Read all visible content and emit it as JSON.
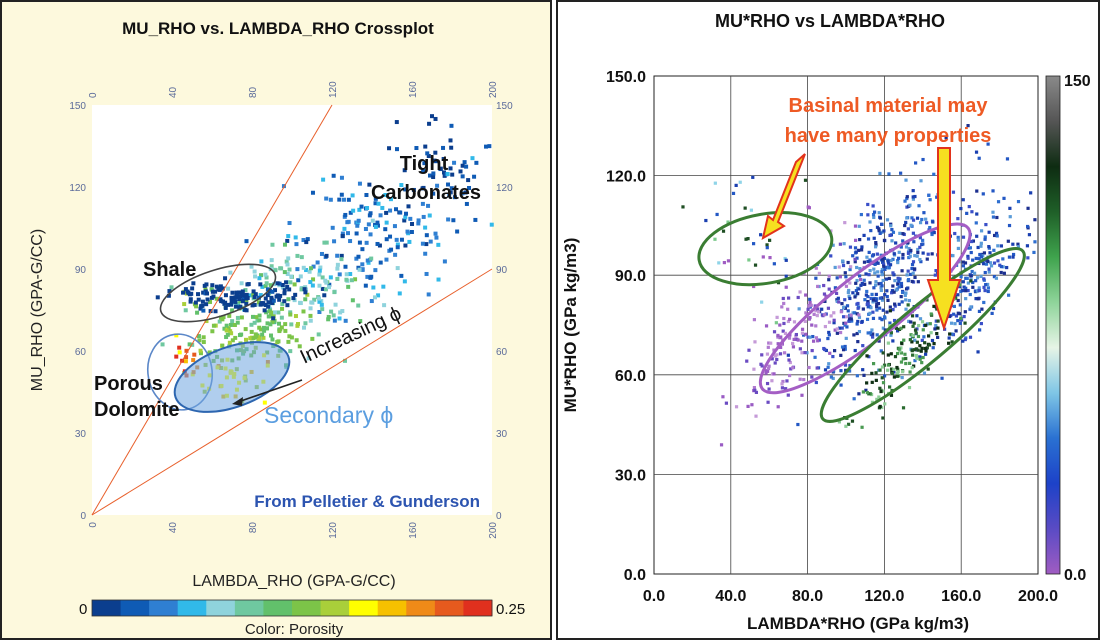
{
  "chart_data": [
    {
      "type": "scatter",
      "title": "MU_RHO vs. LAMBDA_RHO Crossplot",
      "xlabel": "LAMBDA_RHO (GPA-G/CC)",
      "ylabel": "MU_RHO (GPA-G/CC)",
      "xlim": [
        0,
        200
      ],
      "ylim": [
        0,
        150
      ],
      "x_ticks": [
        "0",
        "40",
        "80",
        "120",
        "160",
        "200"
      ],
      "y_ticks": [
        "0",
        "30",
        "60",
        "90",
        "120",
        "150"
      ],
      "lines": [
        {
          "x": [
            0,
            120
          ],
          "y": [
            0,
            150
          ]
        },
        {
          "x": [
            0,
            200
          ],
          "y": [
            0,
            90
          ]
        }
      ],
      "clusters": [
        {
          "cx": 175,
          "cy": 128,
          "sx": 14,
          "sy": 8,
          "n": 60,
          "porosity": 0.02
        },
        {
          "cx": 140,
          "cy": 102,
          "sx": 22,
          "sy": 10,
          "n": 160,
          "porosity": 0.04
        },
        {
          "cx": 100,
          "cy": 82,
          "sx": 18,
          "sy": 8,
          "n": 150,
          "porosity": 0.09
        },
        {
          "cx": 78,
          "cy": 68,
          "sx": 16,
          "sy": 7,
          "n": 150,
          "porosity": 0.13
        },
        {
          "cx": 70,
          "cy": 80,
          "sx": 16,
          "sy": 3,
          "n": 130,
          "porosity": 0.0
        },
        {
          "cx": 70,
          "cy": 50,
          "sx": 9,
          "sy": 5,
          "n": 40,
          "porosity": 0.17
        },
        {
          "cx": 48,
          "cy": 56,
          "sx": 3,
          "sy": 3,
          "n": 12,
          "porosity": 0.23
        }
      ],
      "annotations": {
        "tight": [
          "Tight",
          "Carbonates"
        ],
        "shale": "Shale",
        "increasing": "Increasing ϕ",
        "porous": [
          "Porous",
          "Dolomite"
        ],
        "secondary": "Secondary ϕ",
        "source": "From Pelletier & Gunderson"
      },
      "colorbar": {
        "min_label": "0",
        "max_label": "0.25",
        "label": "Color: Porosity",
        "colors": [
          "#0b3e8e",
          "#0f5bb5",
          "#2f7fd2",
          "#31b9e9",
          "#8fd3dc",
          "#6fc8a0",
          "#62c06b",
          "#7cc448",
          "#a9cf3a",
          "#ffff00",
          "#f6c000",
          "#ef8a18",
          "#e65a1e",
          "#e0301e"
        ]
      }
    },
    {
      "type": "scatter",
      "title": "MU*RHO  vs LAMBDA*RHO",
      "xlabel": "LAMBDA*RHO  (GPa kg/m3)",
      "ylabel": "MU*RHO  (GPa kg/m3)",
      "xlim": [
        0,
        200
      ],
      "ylim": [
        0,
        150
      ],
      "x_ticks": [
        "0.0",
        "40.0",
        "80.0",
        "120.0",
        "160.0",
        "200.0"
      ],
      "y_ticks": [
        "0.0",
        "30.0",
        "60.0",
        "90.0",
        "120.0",
        "150.0"
      ],
      "clusters": [
        {
          "cx": 120,
          "cy": 90,
          "sx": 18,
          "sy": 11,
          "n": 500,
          "color": "blue"
        },
        {
          "cx": 165,
          "cy": 88,
          "sx": 15,
          "sy": 8,
          "n": 240,
          "color": "blue"
        },
        {
          "cx": 75,
          "cy": 72,
          "sx": 15,
          "sy": 8,
          "n": 170,
          "color": "purple"
        },
        {
          "cx": 130,
          "cy": 65,
          "sx": 14,
          "sy": 6,
          "n": 150,
          "color": "green"
        },
        {
          "cx": 55,
          "cy": 100,
          "sx": 16,
          "sy": 10,
          "n": 40,
          "color": "mixed"
        }
      ],
      "ellipses": [
        {
          "cx": 58,
          "cy": 98,
          "rx": 35,
          "ry": 18,
          "angle": 10,
          "color": "#3a7d32"
        },
        {
          "cx": 110,
          "cy": 80,
          "rx": 68,
          "ry": 17,
          "angle": 38,
          "color": "#a45ec4"
        },
        {
          "cx": 140,
          "cy": 72,
          "rx": 68,
          "ry": 14,
          "angle": 40,
          "color": "#3a7d32"
        }
      ],
      "annotation": [
        "Basinal material may",
        "have many properties"
      ],
      "colorbar": {
        "min_label": "0.0",
        "max_label": "150",
        "colors": [
          "#a05cc2",
          "#5a4bc4",
          "#1d42c8",
          "#2a71d2",
          "#7fc6e6",
          "#e6f4e6",
          "#8fd49a",
          "#3fa34d",
          "#1f5f28",
          "#0e2c12",
          "#555555",
          "#8a8a8a"
        ]
      }
    }
  ]
}
